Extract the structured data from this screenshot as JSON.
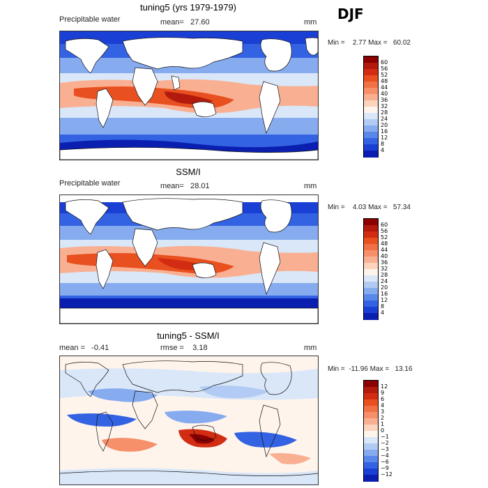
{
  "season": "DJF",
  "panels": [
    {
      "title": "tuning5 (yrs 1979-1979)",
      "left_label": "Precipitable water",
      "mid_label": "mean=   27.60",
      "units": "mm",
      "stats": "Min =    2.77 Max =   60.02",
      "colorbar_ticks": [
        "60",
        "56",
        "52",
        "48",
        "44",
        "40",
        "36",
        "32",
        "28",
        "24",
        "20",
        "16",
        "12",
        "8",
        "4"
      ],
      "colors": [
        "#8b0000",
        "#b21a0d",
        "#d22d12",
        "#e8501f",
        "#f27045",
        "#f6906a",
        "#f9b092",
        "#fcd4bd",
        "#fef4ec",
        "#dae7f8",
        "#b2cbf4",
        "#86abef",
        "#5a88ea",
        "#3363e2",
        "#1a3fd4",
        "#0a1fb0"
      ]
    },
    {
      "title": "SSM/I",
      "left_label": "Precipitable water",
      "mid_label": "mean=   28.01",
      "units": "mm",
      "stats": "Min =    4.03 Max =   57.34",
      "colorbar_ticks": [
        "60",
        "56",
        "52",
        "48",
        "44",
        "40",
        "36",
        "32",
        "28",
        "24",
        "20",
        "16",
        "12",
        "8",
        "4"
      ],
      "colors": [
        "#8b0000",
        "#b21a0d",
        "#d22d12",
        "#e8501f",
        "#f27045",
        "#f6906a",
        "#f9b092",
        "#fcd4bd",
        "#fef4ec",
        "#dae7f8",
        "#b2cbf4",
        "#86abef",
        "#5a88ea",
        "#3363e2",
        "#1a3fd4",
        "#0a1fb0"
      ]
    },
    {
      "title": "tuning5 - SSM/I",
      "left_label": "mean =   -0.41",
      "mid_label": "rmse =    3.18",
      "units": "mm",
      "stats": "Min =  -11.96 Max =   13.16",
      "colorbar_ticks": [
        "12",
        "9",
        "6",
        "4",
        "3",
        "2",
        "1",
        "0",
        "−1",
        "−2",
        "−3",
        "−4",
        "−6",
        "−9",
        "−12"
      ],
      "colors": [
        "#8b0000",
        "#b21a0d",
        "#d22d12",
        "#e8501f",
        "#f27045",
        "#f6906a",
        "#f9b092",
        "#fcd4bd",
        "#fef4ec",
        "#dae7f8",
        "#b2cbf4",
        "#86abef",
        "#5a88ea",
        "#3363e2",
        "#1a3fd4",
        "#0a1fb0"
      ]
    }
  ]
}
